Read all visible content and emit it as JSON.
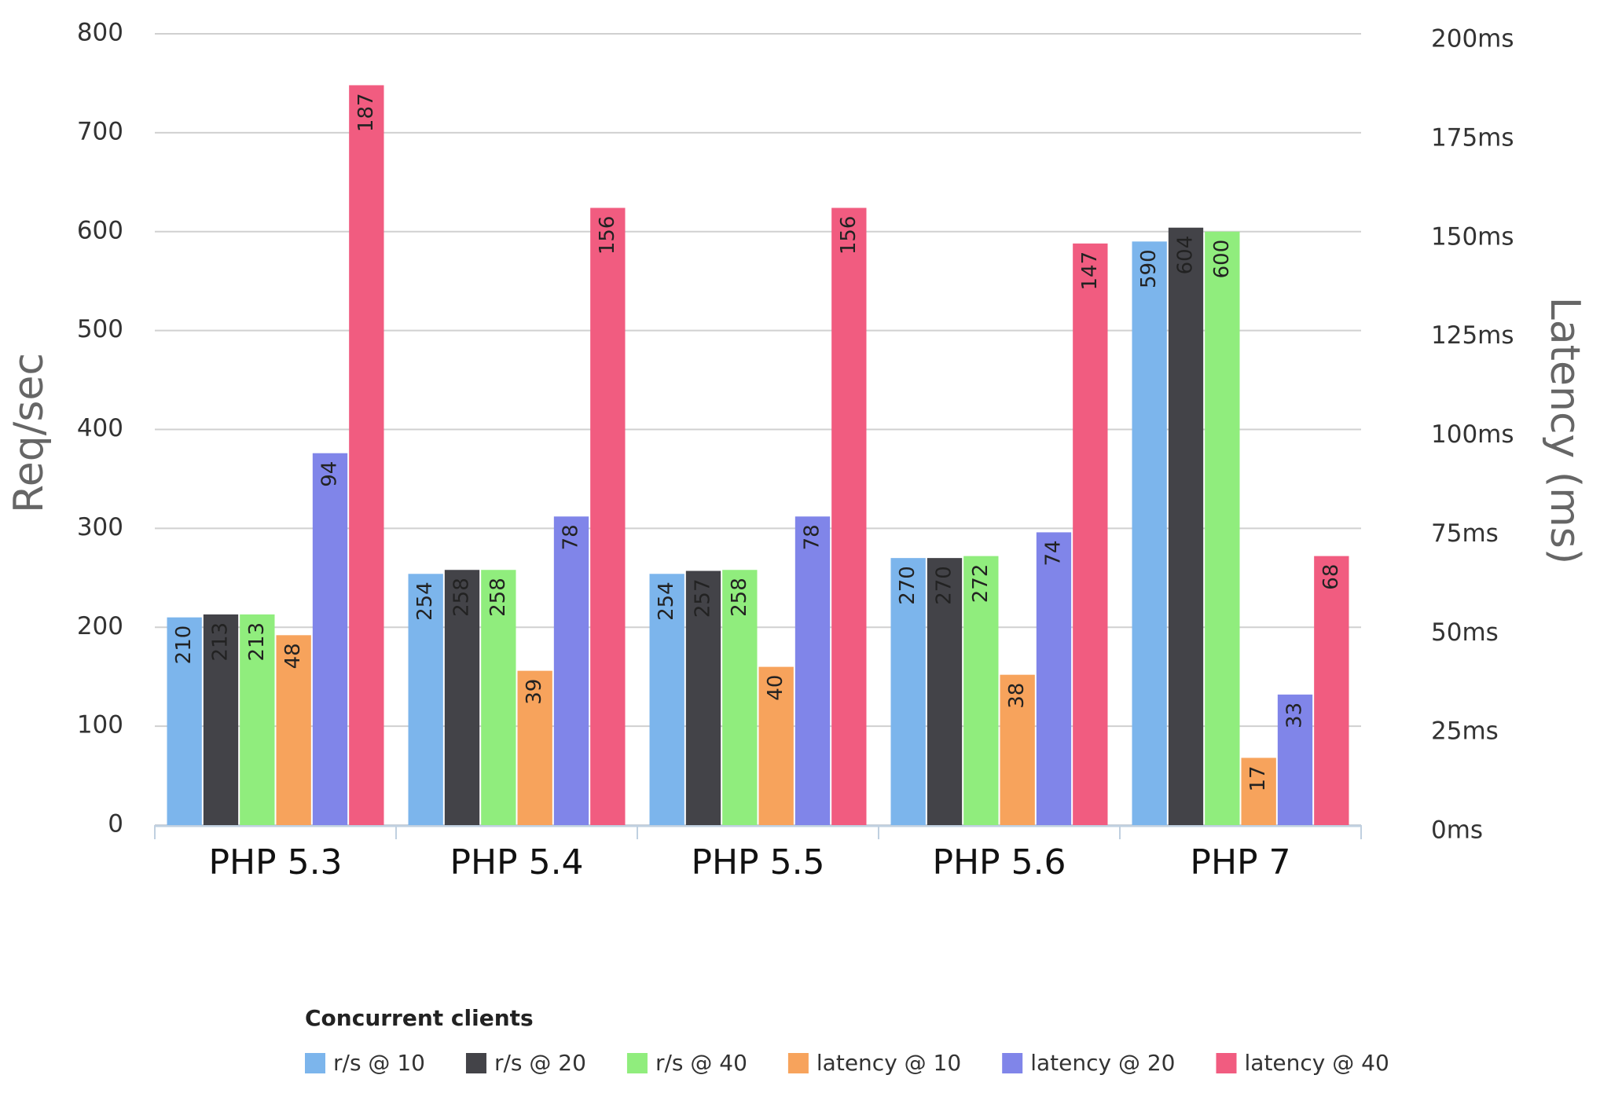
{
  "chart_data": {
    "type": "bar",
    "categories": [
      "PHP 5.3",
      "PHP 5.4",
      "PHP 5.5",
      "PHP 5.6",
      "PHP 7"
    ],
    "y_label": "Req/sec",
    "y2_label": "Latency (ms)",
    "legend_title": "Concurrent clients",
    "legend_position": "bottom",
    "grid": true,
    "ylim": [
      0,
      800
    ],
    "yticks": [
      0,
      100,
      200,
      300,
      400,
      500,
      600,
      700,
      800
    ],
    "y2lim": [
      0,
      200
    ],
    "y2ticks": [
      {
        "value": 0,
        "label": "0ms"
      },
      {
        "value": 25,
        "label": "25ms"
      },
      {
        "value": 50,
        "label": "50ms"
      },
      {
        "value": 75,
        "label": "75ms"
      },
      {
        "value": 100,
        "label": "100ms"
      },
      {
        "value": 125,
        "label": "125ms"
      },
      {
        "value": 150,
        "label": "150ms"
      },
      {
        "value": 175,
        "label": "175ms"
      },
      {
        "value": 200,
        "label": "200ms"
      }
    ],
    "series": [
      {
        "name": "r/s @ 10",
        "color": "#7cb5ec",
        "values": [
          210,
          254,
          254,
          270,
          590
        ]
      },
      {
        "name": "r/s @ 20",
        "color": "#434348",
        "values": [
          213,
          258,
          257,
          270,
          604
        ]
      },
      {
        "name": "r/s @ 40",
        "color": "#90ed7d",
        "values": [
          213,
          258,
          258,
          272,
          600
        ]
      },
      {
        "name": "latency @ 10",
        "color": "#f7a35c",
        "axis": "y2",
        "values": [
          48,
          39,
          40,
          38,
          17
        ]
      },
      {
        "name": "latency @ 20",
        "color": "#8085e9",
        "axis": "y2",
        "values": [
          94,
          78,
          78,
          74,
          33
        ]
      },
      {
        "name": "latency @ 40",
        "color": "#f15c80",
        "axis": "y2",
        "values": [
          187,
          156,
          156,
          147,
          68
        ]
      }
    ]
  }
}
